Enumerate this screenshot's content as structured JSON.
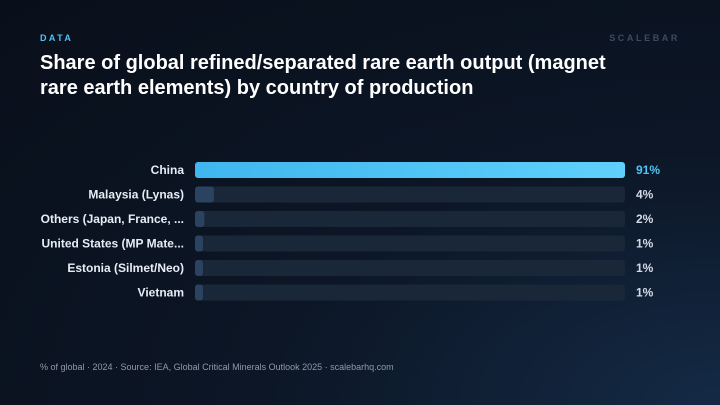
{
  "header": {
    "eyebrow": "DATA",
    "brand": "SCALEBAR",
    "title": "Share of global refined/separated rare earth output (magnet rare earth elements) by country of production"
  },
  "footer": {
    "source": "% of global · 2024 · Source: IEA, Global Critical Minerals Outlook 2025 · scalebarhq.com"
  },
  "colors": {
    "accent": "#4fc3f7",
    "bar_highlight_start": "#3fb6ee",
    "bar_highlight_end": "#5fd0fb",
    "bar_muted": "#2b4261",
    "track": "#1a2738"
  },
  "chart_data": {
    "type": "bar",
    "orientation": "horizontal",
    "categories": [
      "China",
      "Malaysia (Lynas)",
      "Others (Japan, France, ...",
      "United States (MP Mate...",
      "Estonia (Silmet/Neo)",
      "Vietnam"
    ],
    "values": [
      91,
      4,
      2,
      1,
      1,
      1
    ],
    "value_labels": [
      "91%",
      "4%",
      "2%",
      "1%",
      "1%",
      "1%"
    ],
    "unit": "%",
    "xlim": [
      0,
      91
    ],
    "highlight_index": 0,
    "grid": false,
    "legend": "none"
  }
}
